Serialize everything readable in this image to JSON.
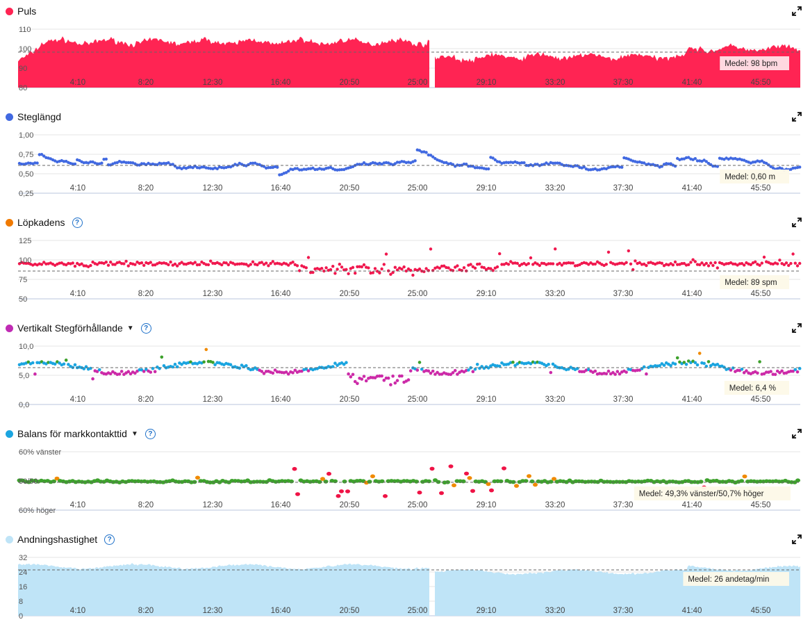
{
  "x_ticks": [
    "4:10",
    "8:20",
    "12:30",
    "16:40",
    "20:50",
    "25:00",
    "29:10",
    "33:20",
    "37:30",
    "41:40",
    "45:50"
  ],
  "colors": {
    "puls": "#ff2453",
    "steglangd": "#4169e1",
    "lopkadens_dot": "#f07a00",
    "lopkadens_points": "#f0184e",
    "vertikalt_dot": "#c02bb4",
    "balans_dot": "#1ba5e0",
    "andning": "#bfe4f7",
    "cat_purple": "#cc2aa8",
    "cat_blue": "#1ba5e0",
    "cat_green": "#3da12c",
    "cat_orange": "#f08a00",
    "cat_red": "#ef1346"
  },
  "panels": [
    {
      "key": "puls",
      "title": "Puls",
      "help": false,
      "dropdown": false,
      "avg_label": "Medel: 98 bpm",
      "y_ticks": [
        "110",
        "100",
        "90",
        "80"
      ]
    },
    {
      "key": "steglangd",
      "title": "Steglängd",
      "help": false,
      "dropdown": false,
      "avg_label": "Medel: 0,60 m",
      "y_ticks": [
        "1,00",
        "0,75",
        "0,50",
        "0,25"
      ]
    },
    {
      "key": "lopkadens",
      "title": "Löpkadens",
      "help": true,
      "dropdown": false,
      "avg_label": "Medel: 89 spm",
      "y_ticks": [
        "125",
        "100",
        "75",
        "50"
      ]
    },
    {
      "key": "vertikalt",
      "title": "Vertikalt Stegförhållande",
      "help": true,
      "dropdown": true,
      "avg_label": "Medel: 6,4 %",
      "y_ticks": [
        "10,0",
        "5,0",
        "0,0"
      ]
    },
    {
      "key": "balans",
      "title": "Balans för markkontakttid",
      "help": true,
      "dropdown": true,
      "avg_label": "Medel: 49,3% vänster/50,7% höger",
      "y_ticks": [
        "60% vänster",
        "50/50",
        "60% höger"
      ]
    },
    {
      "key": "andning",
      "title": "Andningshastighet",
      "help": true,
      "dropdown": false,
      "avg_label": "Medel: 26 andetag/min",
      "y_ticks": [
        "32",
        "24",
        "16",
        "8",
        "0"
      ]
    }
  ],
  "chart_data": [
    {
      "type": "area",
      "title": "Puls",
      "unit": "bpm",
      "ylim": [
        80,
        110
      ],
      "average": 98,
      "x_range": [
        "0:00",
        "48:00"
      ],
      "gap_at": "25:30",
      "approx_levels": [
        {
          "from": "0:00",
          "to": "25:30",
          "value": 103
        },
        {
          "from": "25:30",
          "to": "40:00",
          "value": 95
        },
        {
          "from": "40:00",
          "to": "48:00",
          "value": 99
        }
      ]
    },
    {
      "type": "scatter",
      "title": "Steglängd",
      "unit": "m",
      "ylim": [
        0.25,
        1.0
      ],
      "average": 0.6
    },
    {
      "type": "scatter",
      "title": "Löpkadens",
      "unit": "spm",
      "ylim": [
        50,
        125
      ],
      "average": 89
    },
    {
      "type": "scatter",
      "title": "Vertikalt Stegförhållande",
      "unit": "%",
      "ylim": [
        0,
        10
      ],
      "average": 6.4
    },
    {
      "type": "scatter",
      "title": "Balans för markkontakttid",
      "average_left": 49.3,
      "average_right": 50.7
    },
    {
      "type": "area",
      "title": "Andningshastighet",
      "unit": "andetag/min",
      "ylim": [
        0,
        32
      ],
      "average": 26,
      "gap_at": "25:30"
    }
  ]
}
